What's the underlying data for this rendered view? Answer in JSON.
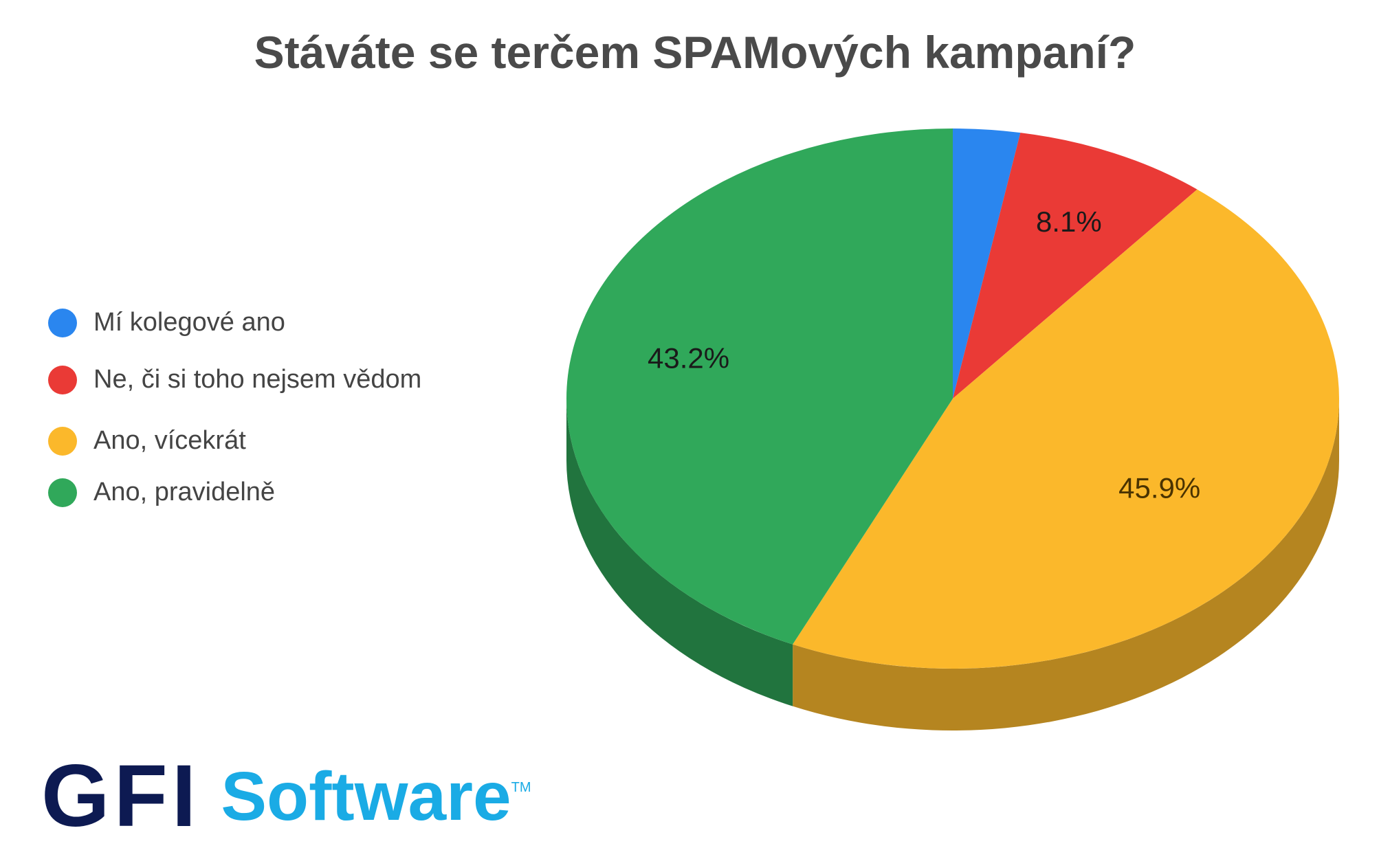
{
  "chart_data": {
    "type": "pie",
    "title": "Stáváte se terčem SPAMových kampaní?",
    "slices": [
      {
        "label": "Mí kolegové ano",
        "value": 2.8,
        "data_label": "",
        "color": "#2a86ef",
        "side": "#1f64b3"
      },
      {
        "label": "Ne, či si toho nejsem vědom",
        "value": 8.1,
        "data_label": "8.1%",
        "color": "#ea3a36",
        "side": "#a82a27"
      },
      {
        "label": "Ano, vícekrát",
        "value": 45.9,
        "data_label": "45.9%",
        "color": "#fbb82b",
        "side": "#b58520"
      },
      {
        "label": "Ano, pravidelně",
        "value": 43.2,
        "data_label": "43.2%",
        "color": "#30a85a",
        "side": "#21743e"
      }
    ],
    "legend_position": "left",
    "style": "3d"
  },
  "logo": {
    "mark": "GFI",
    "text": "Software",
    "tm": "TM"
  }
}
